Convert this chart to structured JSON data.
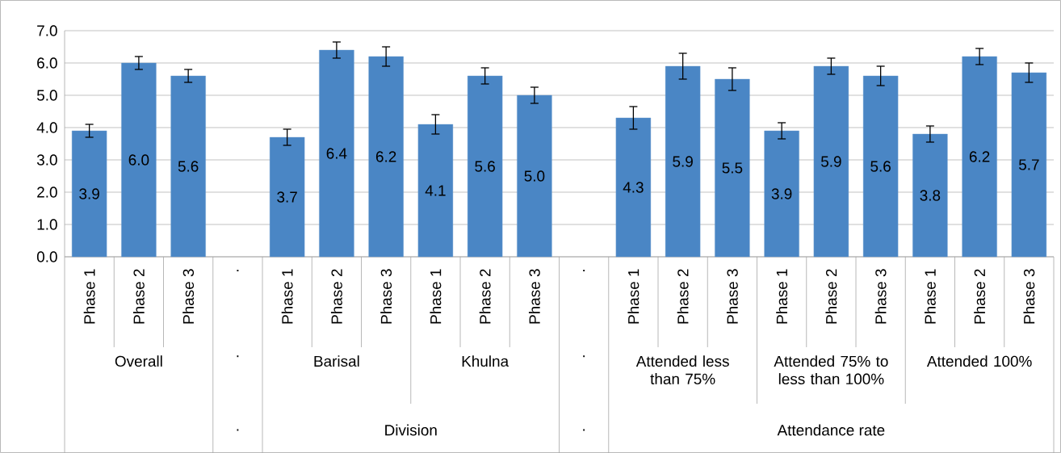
{
  "chart_data": {
    "type": "bar",
    "categories": [
      "Phase 1",
      "Phase 2",
      "Phase 3",
      ".",
      "Phase 1",
      "Phase 2",
      "Phase 3",
      "Phase 1",
      "Phase 2",
      "Phase 3",
      ".",
      "Phase 1",
      "Phase 2",
      "Phase 3",
      "Phase 1",
      "Phase 2",
      "Phase 3",
      "Phase 1",
      "Phase 2",
      "Phase 3"
    ],
    "values": [
      3.9,
      6.0,
      5.6,
      null,
      3.7,
      6.4,
      6.2,
      4.1,
      5.6,
      5.0,
      null,
      4.3,
      5.9,
      5.5,
      3.9,
      5.9,
      5.6,
      3.8,
      6.2,
      5.7
    ],
    "errors": [
      0.2,
      0.2,
      0.2,
      null,
      0.25,
      0.25,
      0.3,
      0.3,
      0.25,
      0.25,
      null,
      0.35,
      0.4,
      0.35,
      0.25,
      0.25,
      0.3,
      0.25,
      0.25,
      0.3
    ],
    "color": "#4a86c5",
    "value_labels": [
      "3.9",
      "6.0",
      "5.6",
      null,
      "3.7",
      "6.4",
      "6.2",
      "4.1",
      "5.6",
      "5.0",
      null,
      "4.3",
      "5.9",
      "5.5",
      "3.9",
      "5.9",
      "5.6",
      "3.8",
      "6.2",
      "5.7"
    ],
    "ylim": [
      0,
      7
    ],
    "yticks": [
      {
        "value": 0,
        "label": "0.0"
      },
      {
        "value": 1,
        "label": "1.0"
      },
      {
        "value": 2,
        "label": "2.0"
      },
      {
        "value": 3,
        "label": "3.0"
      },
      {
        "value": 4,
        "label": "4.0"
      },
      {
        "value": 5,
        "label": "5.0"
      },
      {
        "value": 6,
        "label": "6.0"
      },
      {
        "value": 7,
        "label": "7.0"
      }
    ],
    "grid": "y",
    "annotations": [
      "Overall",
      ".",
      "Barisal",
      "Khulna",
      ".",
      "Attended less than 75%",
      "Attended 75% to less than 100%",
      "Attended 100%",
      ".",
      "Division",
      ".",
      "Attendance rate"
    ]
  }
}
